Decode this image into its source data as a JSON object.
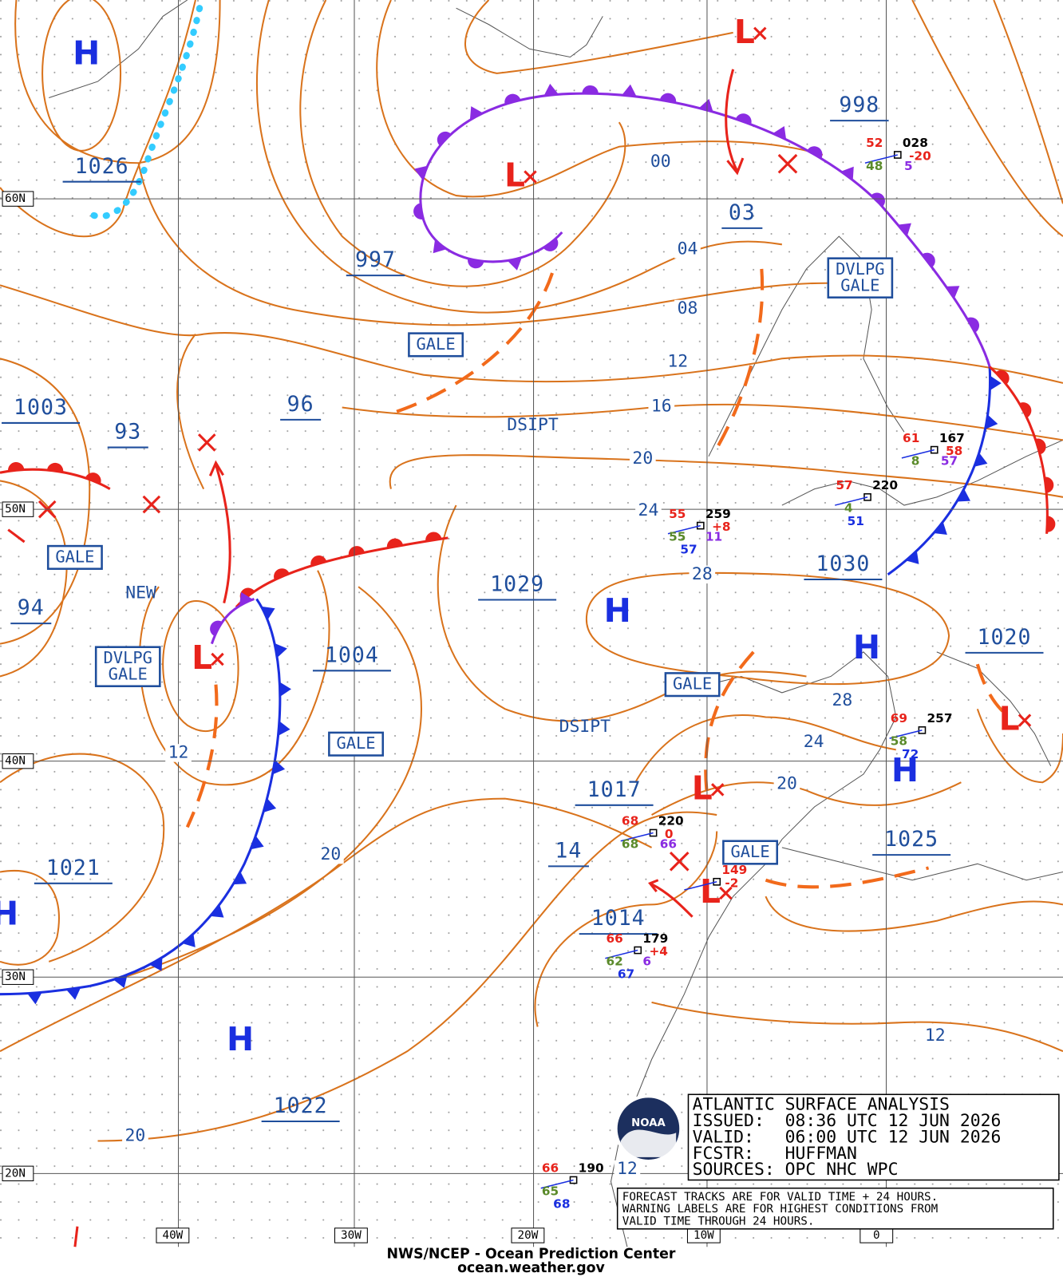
{
  "grid_labels": {
    "lat": [
      "60N",
      "50N",
      "40N",
      "30N",
      "20N"
    ],
    "lon": [
      "40W",
      "30W",
      "20W",
      "10W",
      "0"
    ]
  },
  "pressure_labels": [
    "1026",
    "997",
    "998",
    "03",
    "1003",
    "93",
    "96",
    "1029",
    "1030",
    "94",
    "1004",
    "1020",
    "1017",
    "1025",
    "14",
    "1014",
    "1021",
    "1022"
  ],
  "isobar_labels": [
    "00",
    "04",
    "08",
    "12",
    "16",
    "20",
    "24",
    "28",
    "28",
    "24",
    "20",
    "12",
    "20",
    "12",
    "20",
    "12"
  ],
  "notes": [
    "DSIPT",
    "DSIPT",
    "NEW"
  ],
  "warnings": [
    [
      "GALE"
    ],
    [
      "DVLPG",
      "GALE"
    ],
    [
      "GALE"
    ],
    [
      "DVLPG",
      "GALE"
    ],
    [
      "GALE"
    ],
    [
      "GALE"
    ],
    [
      "GALE"
    ]
  ],
  "highs": [
    "H",
    "H",
    "H",
    "H",
    "H",
    "H"
  ],
  "lows": [
    "L",
    "L",
    "L",
    "L",
    "L",
    "L"
  ],
  "stations": [
    [
      "52",
      "028",
      "-20",
      "48",
      "5"
    ],
    [
      "61",
      "167",
      "58",
      "8",
      "57"
    ],
    [
      "57",
      "220",
      "4",
      "51"
    ],
    [
      "55",
      "259",
      "+8",
      "55",
      "11",
      "57"
    ],
    [
      "69",
      "257",
      "58",
      "72"
    ],
    [
      "68",
      "220",
      "0",
      "68",
      "66"
    ],
    [
      "66",
      "179",
      "+4",
      "62",
      "6",
      "67"
    ],
    [
      "66",
      "190",
      "65",
      "68"
    ],
    [
      "149",
      "-2"
    ]
  ],
  "info_box": {
    "lines": [
      "ATLANTIC SURFACE ANALYSIS",
      "ISSUED:  08:36 UTC 12 JUN 2026",
      "VALID:   06:00 UTC 12 JUN 2026",
      "FCSTR:   HUFFMAN",
      "SOURCES: OPC NHC WPC"
    ],
    "note": [
      "FORECAST TRACKS ARE FOR VALID TIME + 24 HOURS.",
      "WARNING LABELS ARE FOR HIGHEST CONDITIONS FROM",
      "VALID TIME THROUGH 24 HOURS."
    ],
    "logo": "NOAA"
  },
  "footer": [
    "NWS/NCEP - Ocean Prediction Center",
    "ocean.weather.gov"
  ]
}
